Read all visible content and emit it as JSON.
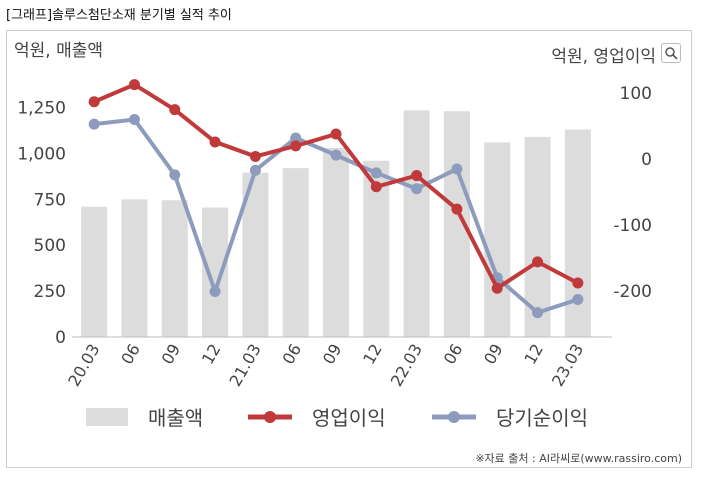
{
  "caption": "[그래프]솔루스첨단소재 분기별 실적 추이",
  "source": "※자료 출처 : AI라씨로(www.rassiro.com)",
  "chart_data": {
    "type": "bar+line",
    "categories": [
      "20.03",
      "06",
      "09",
      "12",
      "21.03",
      "06",
      "09",
      "12",
      "22.03",
      "06",
      "09",
      "12",
      "23.03"
    ],
    "left_axis": {
      "unit_label": "억원, 매출액",
      "ylim": [
        0,
        1400
      ],
      "ticks": [
        0,
        250,
        500,
        750,
        "1,000",
        "1,250"
      ],
      "tick_values": [
        0,
        250,
        500,
        750,
        1000,
        1250
      ]
    },
    "right_axis": {
      "unit_label": "억원, 영업이익",
      "ylim": [
        -270,
        120
      ],
      "ticks": [
        "100",
        "0",
        "-100",
        "-200"
      ],
      "tick_values": [
        100,
        0,
        -100,
        -200
      ]
    },
    "series": [
      {
        "name": "매출액",
        "type": "bar",
        "axis": "left",
        "color": "#dcdcdc",
        "values": [
          710,
          750,
          745,
          705,
          895,
          920,
          1030,
          960,
          1235,
          1230,
          1060,
          1090,
          1130
        ]
      },
      {
        "name": "영업이익",
        "type": "line",
        "axis": "right",
        "color": "#c0393b",
        "values": [
          87,
          113,
          75,
          26,
          4,
          20,
          38,
          -42,
          -25,
          -76,
          -196,
          -156,
          -188
        ]
      },
      {
        "name": "당기순이익",
        "type": "line",
        "axis": "right",
        "color": "#8d9bbd",
        "values": [
          53,
          60,
          -24,
          -201,
          -17,
          32,
          6,
          -21,
          -45,
          -15,
          -180,
          -233,
          -213
        ]
      }
    ],
    "grid": false,
    "legend": "bottom"
  },
  "icons": {
    "zoom": "zoom-icon"
  }
}
